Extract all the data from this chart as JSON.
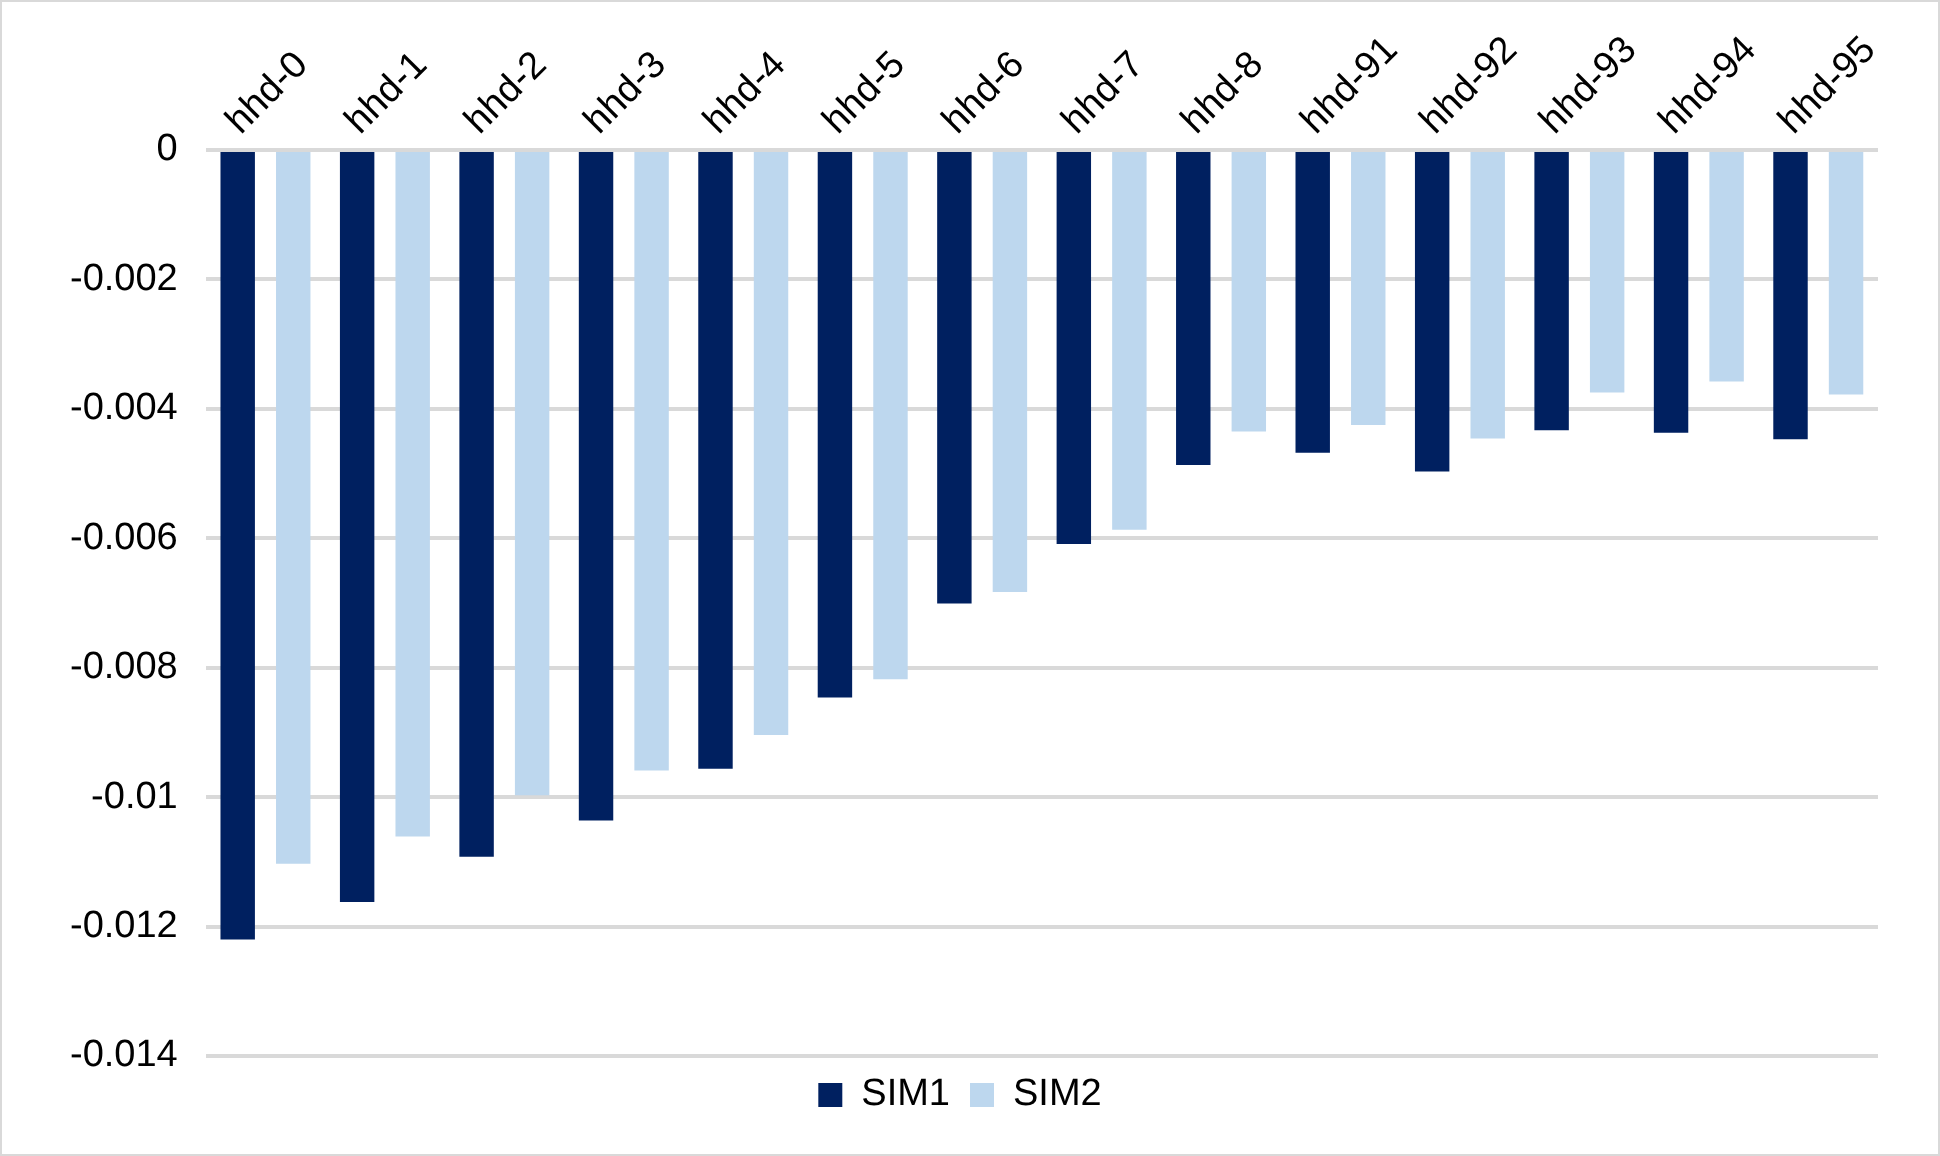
{
  "chart_data": {
    "type": "bar",
    "categories": [
      "hhd-0",
      "hhd-1",
      "hhd-2",
      "hhd-3",
      "hhd-4",
      "hhd-5",
      "hhd-6",
      "hhd-7",
      "hhd-8",
      "hhd-91",
      "hhd-92",
      "hhd-93",
      "hhd-94",
      "hhd-95"
    ],
    "series": [
      {
        "name": "SIM1",
        "color": "#002060",
        "values": [
          -0.0122,
          -0.01162,
          -0.01092,
          -0.01036,
          -0.00956,
          -0.00846,
          -0.00701,
          -0.00609,
          -0.00487,
          -0.00468,
          -0.00497,
          -0.00433,
          -0.00437,
          -0.00447
        ]
      },
      {
        "name": "SIM2",
        "color": "#bdd7ee",
        "values": [
          -0.01103,
          -0.01061,
          -0.00997,
          -0.00959,
          -0.00904,
          -0.00818,
          -0.00683,
          -0.00587,
          -0.00435,
          -0.00425,
          -0.00446,
          -0.00375,
          -0.00358,
          -0.00378
        ]
      }
    ],
    "ylim": [
      -0.014,
      0
    ],
    "yticks": [
      0,
      -0.002,
      -0.004,
      -0.006,
      -0.008,
      -0.01,
      -0.012,
      -0.014
    ],
    "grid": "y",
    "legend": "bottom"
  }
}
